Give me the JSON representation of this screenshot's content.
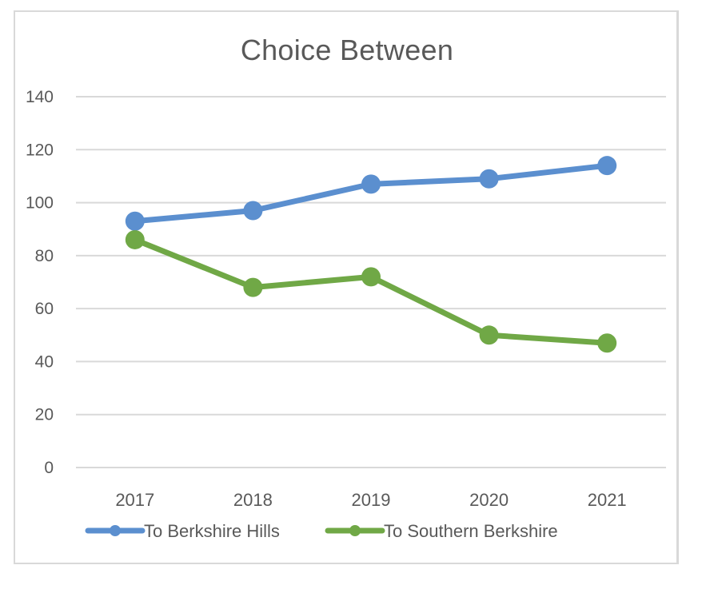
{
  "chart_data": {
    "type": "line",
    "title": "Choice Between",
    "xlabel": "",
    "ylabel": "",
    "categories": [
      "2017",
      "2018",
      "2019",
      "2020",
      "2021"
    ],
    "series": [
      {
        "name": "To Berkshire Hills",
        "color": "#5b8fcf",
        "values": [
          93,
          97,
          107,
          109,
          114
        ]
      },
      {
        "name": "To Southern Berkshire",
        "color": "#70a846",
        "values": [
          86,
          68,
          72,
          50,
          47
        ]
      }
    ],
    "ylim": [
      0,
      140
    ],
    "yticks": [
      "0",
      "20",
      "40",
      "60",
      "80",
      "100",
      "120",
      "140"
    ],
    "grid": true,
    "legend_position": "bottom",
    "markers": "circle"
  },
  "colors": {
    "gridline": "#d9d9d9",
    "text": "#595959",
    "frame": "#d9d9d9"
  }
}
